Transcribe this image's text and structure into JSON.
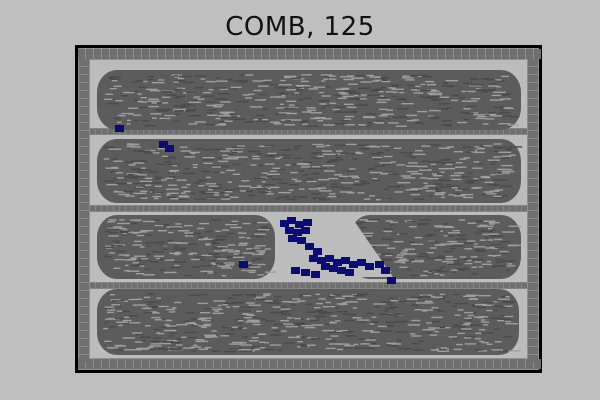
{
  "header": {
    "title": "COMB, 125"
  },
  "board": {
    "rows": 4,
    "colors": {
      "background": "#bfbfbf",
      "frame_border": "#000000",
      "frame_fill": "#8e8e8e",
      "frame_brick": "#6f6f6f",
      "wall_bar": "#858585",
      "cell_area": "#bcbcbc",
      "comb_gray": "#5c5c5c",
      "comb_light": "#9e9e9e",
      "blue_cells": "#0a0a78"
    }
  }
}
